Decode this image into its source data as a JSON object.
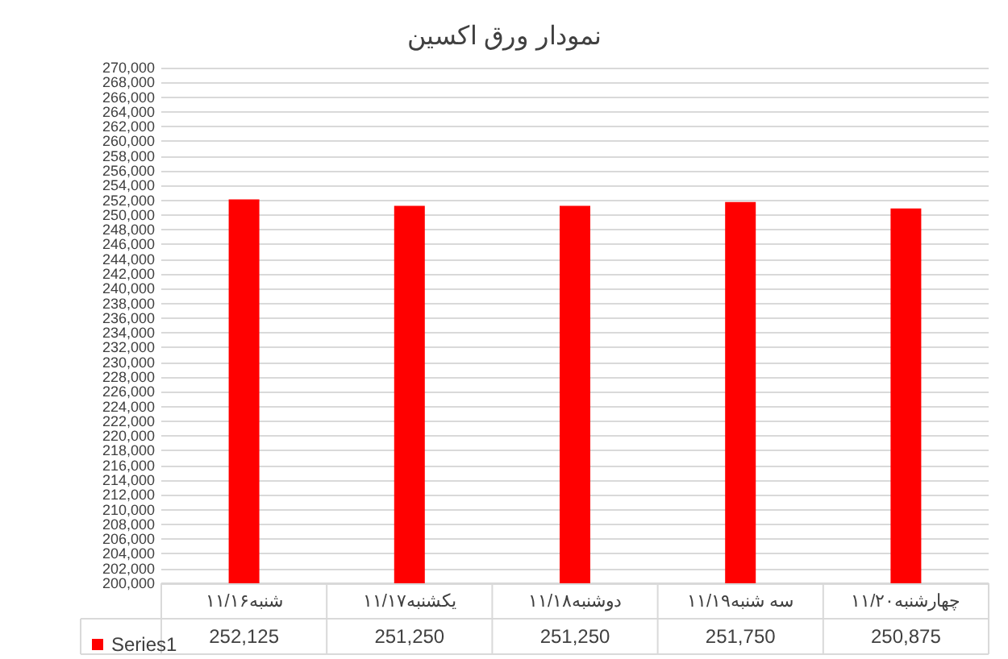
{
  "chart_data": {
    "type": "bar",
    "title": "نمودار ورق اکسین",
    "categories": [
      "شنبه۱۱/۱۶",
      "یکشنبه۱۱/۱۷",
      "دوشنبه۱۱/۱۸",
      "سه شنبه۱۱/۱۹",
      "چهارشنبه۱۱/۲۰"
    ],
    "series": [
      {
        "name": "Series1",
        "color": "#ff0000",
        "values": [
          252125,
          251250,
          251250,
          251750,
          250875
        ],
        "value_labels": [
          "252,125",
          "251,250",
          "251,250",
          "251,750",
          "250,875"
        ]
      }
    ],
    "ylim": [
      200000,
      270000
    ],
    "yticks": [
      {
        "value": 200000,
        "label": "200,000"
      },
      {
        "value": 202000,
        "label": "202,000"
      },
      {
        "value": 204000,
        "label": "204,000"
      },
      {
        "value": 206000,
        "label": "206,000"
      },
      {
        "value": 208000,
        "label": "208,000"
      },
      {
        "value": 210000,
        "label": "210,000"
      },
      {
        "value": 212000,
        "label": "212,000"
      },
      {
        "value": 214000,
        "label": "214,000"
      },
      {
        "value": 216000,
        "label": "216,000"
      },
      {
        "value": 218000,
        "label": "218,000"
      },
      {
        "value": 220000,
        "label": "220,000"
      },
      {
        "value": 222000,
        "label": "222,000"
      },
      {
        "value": 224000,
        "label": "224,000"
      },
      {
        "value": 226000,
        "label": "226,000"
      },
      {
        "value": 228000,
        "label": "228,000"
      },
      {
        "value": 230000,
        "label": "230,000"
      },
      {
        "value": 232000,
        "label": "232,000"
      },
      {
        "value": 234000,
        "label": "234,000"
      },
      {
        "value": 236000,
        "label": "236,000"
      },
      {
        "value": 238000,
        "label": "238,000"
      },
      {
        "value": 240000,
        "label": "240,000"
      },
      {
        "value": 242000,
        "label": "242,000"
      },
      {
        "value": 244000,
        "label": "244,000"
      },
      {
        "value": 246000,
        "label": "246,000"
      },
      {
        "value": 248000,
        "label": "248,000"
      },
      {
        "value": 250000,
        "label": "250,000"
      },
      {
        "value": 252000,
        "label": "252,000"
      },
      {
        "value": 254000,
        "label": "254,000"
      },
      {
        "value": 256000,
        "label": "256,000"
      },
      {
        "value": 258000,
        "label": "258,000"
      },
      {
        "value": 260000,
        "label": "260,000"
      },
      {
        "value": 262000,
        "label": "262,000"
      },
      {
        "value": 264000,
        "label": "264,000"
      },
      {
        "value": 266000,
        "label": "266,000"
      },
      {
        "value": 268000,
        "label": "268,000"
      },
      {
        "value": 270000,
        "label": "270,000"
      }
    ],
    "grid": "y",
    "legend": "bottom"
  }
}
